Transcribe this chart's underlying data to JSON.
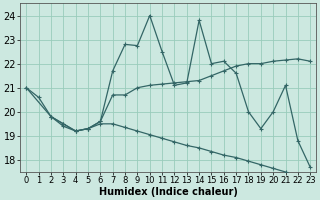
{
  "xlabel": "Humidex (Indice chaleur)",
  "bg_color": "#cce8e0",
  "grid_color": "#99ccbb",
  "line_color": "#336666",
  "xlim": [
    -0.5,
    23.5
  ],
  "ylim": [
    17.5,
    24.5
  ],
  "yticks": [
    18,
    19,
    20,
    21,
    22,
    23,
    24
  ],
  "xticks": [
    0,
    1,
    2,
    3,
    4,
    5,
    6,
    7,
    8,
    9,
    10,
    11,
    12,
    13,
    14,
    15,
    16,
    17,
    18,
    19,
    20,
    21,
    22,
    23
  ],
  "line1_x": [
    0,
    1,
    2,
    3,
    4,
    5,
    6,
    7,
    8,
    9,
    10,
    11,
    12,
    13,
    14,
    15,
    16,
    17,
    18,
    19,
    20,
    21,
    22,
    23
  ],
  "line1_y": [
    21.0,
    20.6,
    19.8,
    19.5,
    19.2,
    19.3,
    19.6,
    20.7,
    20.7,
    21.0,
    21.1,
    21.15,
    21.2,
    21.25,
    21.3,
    21.5,
    21.7,
    21.9,
    22.0,
    22.0,
    22.1,
    22.15,
    22.2,
    22.1
  ],
  "line2_x": [
    2,
    3,
    4,
    5,
    6,
    7,
    8,
    9,
    10,
    11,
    12,
    13,
    14,
    15,
    16,
    17,
    18,
    19,
    20,
    21,
    22,
    23
  ],
  "line2_y": [
    19.8,
    19.4,
    19.2,
    19.3,
    19.6,
    21.7,
    22.8,
    22.75,
    24.0,
    22.5,
    21.1,
    21.2,
    23.8,
    22.0,
    22.1,
    21.6,
    20.0,
    19.3,
    20.0,
    21.1,
    18.8,
    17.7
  ],
  "line3_x": [
    0,
    2,
    3,
    4,
    5,
    6,
    7,
    8,
    9,
    10,
    11,
    12,
    13,
    14,
    15,
    16,
    17,
    18,
    19,
    20,
    21,
    22,
    23
  ],
  "line3_y": [
    21.0,
    19.8,
    19.5,
    19.2,
    19.3,
    19.5,
    19.5,
    19.35,
    19.2,
    19.05,
    18.9,
    18.75,
    18.6,
    18.5,
    18.35,
    18.2,
    18.1,
    17.95,
    17.8,
    17.65,
    17.5,
    17.35,
    17.2
  ],
  "xlabel_fontsize": 7,
  "tick_fontsize": 6,
  "lw": 0.9,
  "ms": 3.0
}
